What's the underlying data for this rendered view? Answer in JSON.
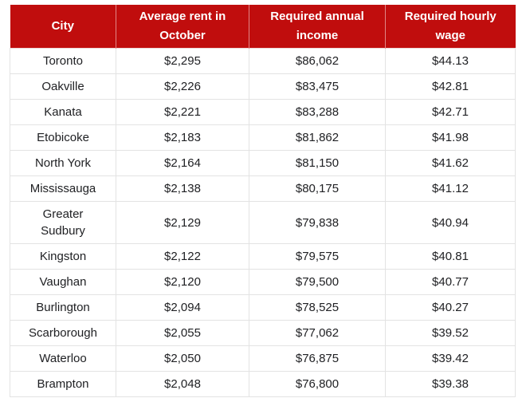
{
  "styles": {
    "header_bg": "#c00d0d",
    "header_fg": "#ffffff",
    "grid_line": "#e3e3e3"
  },
  "chart_data": {
    "type": "table",
    "columns": [
      "City",
      "Average rent in October",
      "Required annual income",
      "Required hourly wage"
    ],
    "rows": [
      [
        "Toronto",
        "$2,295",
        "$86,062",
        "$44.13"
      ],
      [
        "Oakville",
        "$2,226",
        "$83,475",
        "$42.81"
      ],
      [
        "Kanata",
        "$2,221",
        "$83,288",
        "$42.71"
      ],
      [
        "Etobicoke",
        "$2,183",
        "$81,862",
        "$41.98"
      ],
      [
        "North York",
        "$2,164",
        "$81,150",
        "$41.62"
      ],
      [
        "Mississauga",
        "$2,138",
        "$80,175",
        "$41.12"
      ],
      [
        "Greater Sudbury",
        "$2,129",
        "$79,838",
        "$40.94"
      ],
      [
        "Kingston",
        "$2,122",
        "$79,575",
        "$40.81"
      ],
      [
        "Vaughan",
        "$2,120",
        "$79,500",
        "$40.77"
      ],
      [
        "Burlington",
        "$2,094",
        "$78,525",
        "$40.27"
      ],
      [
        "Scarborough",
        "$2,055",
        "$77,062",
        "$39.52"
      ],
      [
        "Waterloo",
        "$2,050",
        "$76,875",
        "$39.42"
      ],
      [
        "Brampton",
        "$2,048",
        "$76,800",
        "$39.38"
      ]
    ]
  }
}
